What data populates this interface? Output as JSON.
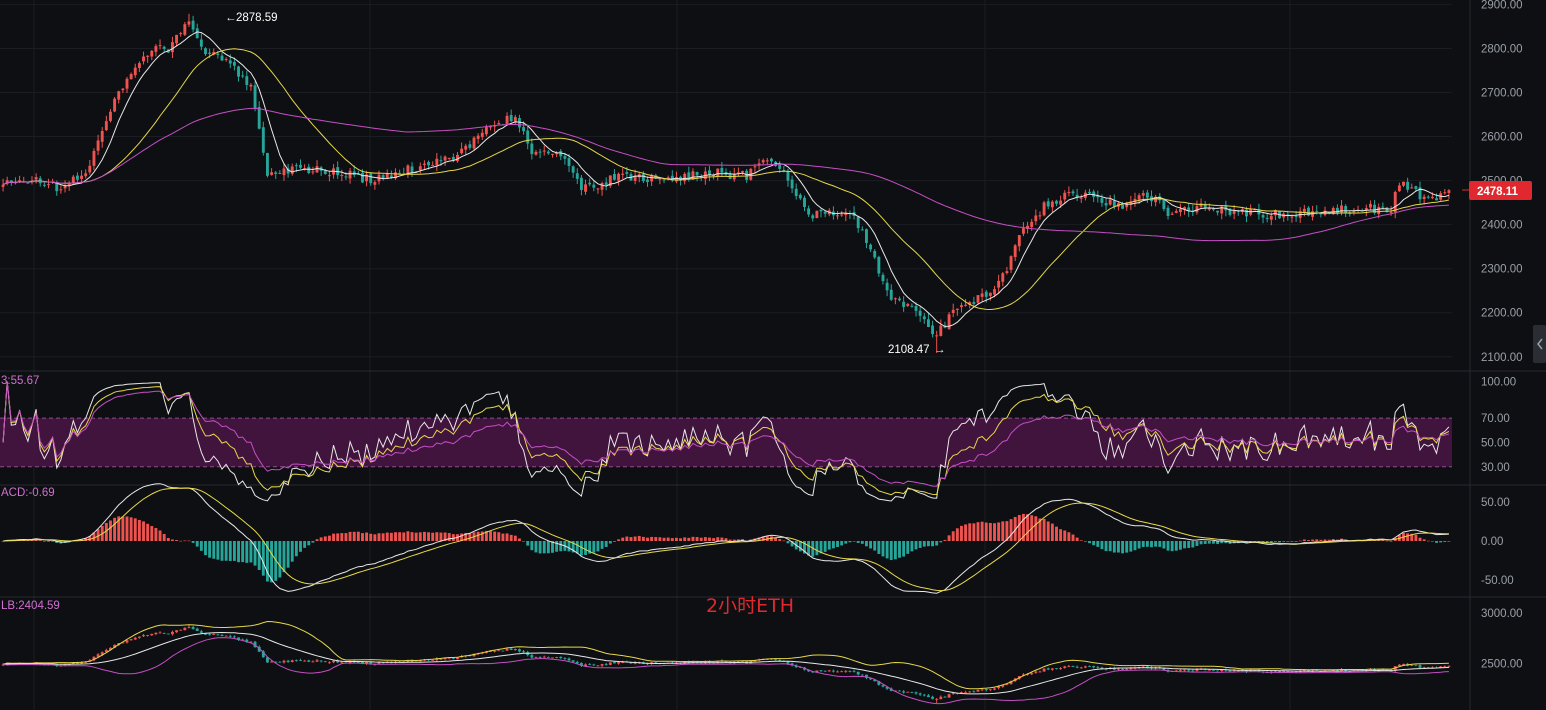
{
  "colors": {
    "background": "#0e0f12",
    "up": "#ef5350",
    "down": "#26a69a",
    "ma_fast": "#e8e8e8",
    "ma_mid": "#e6d84a",
    "ma_slow": "#c54fc5",
    "rsi_band": "#4a1547",
    "price_tag": "#e0282e",
    "grid": "#1b1d22"
  },
  "chart_data": [
    {
      "type": "candlestick",
      "title": "",
      "ylim": [
        2070,
        2910
      ],
      "y_ticks": [
        "2900.00",
        "2800.00",
        "2700.00",
        "2600.00",
        "2500.00",
        "2400.00",
        "2300.00",
        "2200.00",
        "2100.00"
      ],
      "last_price": "2478.11",
      "high_annotation": "2878.59",
      "low_annotation": "2108.47",
      "close_anchors": [
        [
          0,
          2490
        ],
        [
          8,
          2505
        ],
        [
          14,
          2480
        ],
        [
          20,
          2520
        ],
        [
          28,
          2700
        ],
        [
          34,
          2790
        ],
        [
          40,
          2800
        ],
        [
          45,
          2860
        ],
        [
          48,
          2800
        ],
        [
          55,
          2760
        ],
        [
          60,
          2720
        ],
        [
          62,
          2620
        ],
        [
          64,
          2510
        ],
        [
          70,
          2530
        ],
        [
          80,
          2520
        ],
        [
          90,
          2500
        ],
        [
          100,
          2530
        ],
        [
          110,
          2560
        ],
        [
          118,
          2620
        ],
        [
          124,
          2650
        ],
        [
          128,
          2560
        ],
        [
          134,
          2570
        ],
        [
          140,
          2480
        ],
        [
          150,
          2510
        ],
        [
          160,
          2500
        ],
        [
          170,
          2520
        ],
        [
          180,
          2510
        ],
        [
          186,
          2550
        ],
        [
          190,
          2500
        ],
        [
          195,
          2420
        ],
        [
          200,
          2430
        ],
        [
          206,
          2420
        ],
        [
          210,
          2340
        ],
        [
          215,
          2230
        ],
        [
          222,
          2200
        ],
        [
          226,
          2150
        ],
        [
          230,
          2200
        ],
        [
          236,
          2230
        ],
        [
          242,
          2280
        ],
        [
          246,
          2380
        ],
        [
          252,
          2440
        ],
        [
          258,
          2470
        ],
        [
          264,
          2460
        ],
        [
          270,
          2440
        ],
        [
          276,
          2480
        ],
        [
          282,
          2430
        ],
        [
          290,
          2440
        ],
        [
          300,
          2430
        ],
        [
          310,
          2420
        ],
        [
          320,
          2430
        ],
        [
          330,
          2440
        ],
        [
          336,
          2430
        ],
        [
          338,
          2500
        ],
        [
          342,
          2470
        ],
        [
          346,
          2460
        ],
        [
          350,
          2478
        ]
      ],
      "moving_averages": [
        "fast",
        "mid",
        "slow"
      ]
    },
    {
      "type": "line",
      "indicator": "RSI",
      "label": "3:55.67",
      "ylim": [
        15,
        108
      ],
      "y_ticks": [
        "100.00",
        "70.00",
        "50.00",
        "30.00"
      ],
      "band": [
        30,
        70
      ]
    },
    {
      "type": "bar",
      "indicator": "MACD",
      "label": "ACD:-0.69",
      "ylim": [
        -72,
        72
      ],
      "y_ticks": [
        "50.00",
        "0.00",
        "-50.00"
      ]
    },
    {
      "type": "line",
      "indicator": "BOLL",
      "label": "LB:2404.59",
      "ylim": [
        2040,
        3160
      ],
      "y_ticks": [
        "3000.00",
        "2500.00"
      ]
    }
  ],
  "watermark": "2小时ETH"
}
